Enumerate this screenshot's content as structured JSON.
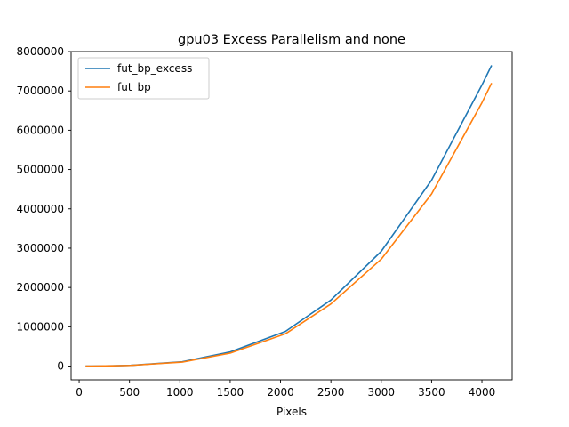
{
  "chart_data": {
    "type": "line",
    "title": "gpu03 Excess Parallelism and none",
    "xlabel": "Pixels",
    "ylabel": "",
    "xlim": [
      -80,
      4300
    ],
    "ylim": [
      -350000,
      8000000
    ],
    "xticks": [
      0,
      500,
      1000,
      1500,
      2000,
      2500,
      3000,
      3500,
      4000
    ],
    "yticks": [
      0,
      1000000,
      2000000,
      3000000,
      4000000,
      5000000,
      6000000,
      7000000,
      8000000
    ],
    "xtick_labels": [
      "0",
      "500",
      "1000",
      "1500",
      "2000",
      "2500",
      "3000",
      "3500",
      "4000"
    ],
    "ytick_labels": [
      "0",
      "1000000",
      "2000000",
      "3000000",
      "4000000",
      "5000000",
      "6000000",
      "7000000",
      "8000000"
    ],
    "legend_position": "upper-left",
    "series": [
      {
        "name": "fut_bp_excess",
        "color": "#1f77b4",
        "x": [
          64,
          128,
          256,
          512,
          1024,
          1500,
          2048,
          2500,
          3000,
          3500,
          4000,
          4096
        ],
        "y": [
          0,
          1000,
          4000,
          20000,
          110000,
          360000,
          880000,
          1680000,
          2920000,
          4730000,
          7150000,
          7650000
        ]
      },
      {
        "name": "fut_bp",
        "color": "#ff7f0e",
        "x": [
          64,
          128,
          256,
          512,
          1024,
          1500,
          2048,
          2500,
          3000,
          3500,
          4000,
          4096
        ],
        "y": [
          0,
          1000,
          4000,
          18000,
          100000,
          330000,
          820000,
          1580000,
          2720000,
          4380000,
          6700000,
          7200000
        ]
      }
    ]
  }
}
